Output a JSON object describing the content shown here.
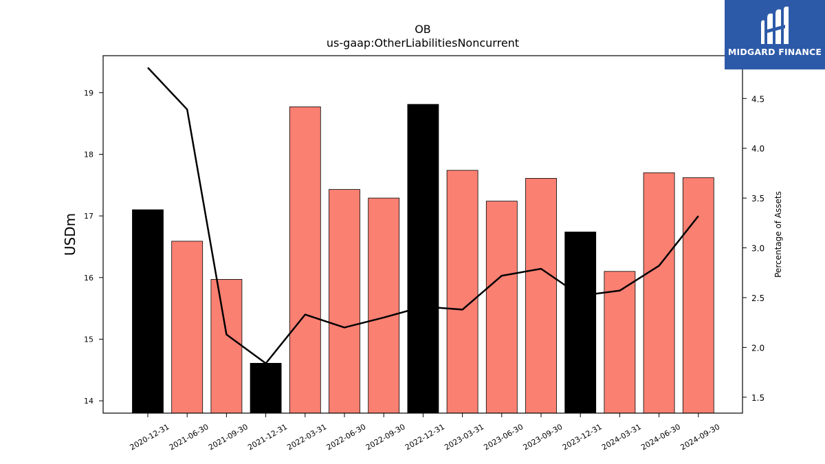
{
  "chart_data": {
    "type": "bar",
    "title": "OB",
    "subtitle": "us-gaap:OtherLiabilitiesNoncurrent",
    "ylabel": "USDm",
    "ylabel_right": "Percentage of Assets",
    "categories": [
      "2020-12-31",
      "2021-06-30",
      "2021-09-30",
      "2021-12-31",
      "2022-03-31",
      "2022-06-30",
      "2022-09-30",
      "2022-12-31",
      "2023-03-31",
      "2023-06-30",
      "2023-09-30",
      "2023-12-31",
      "2024-03-31",
      "2024-06-30",
      "2024-09-30"
    ],
    "values": [
      17.1,
      16.59,
      15.97,
      14.61,
      18.77,
      17.43,
      17.29,
      18.81,
      17.74,
      17.24,
      17.61,
      16.74,
      16.1,
      17.7,
      17.62
    ],
    "bar_colors": [
      "#000000",
      "#fa8072",
      "#fa8072",
      "#000000",
      "#fa8072",
      "#fa8072",
      "#fa8072",
      "#000000",
      "#fa8072",
      "#fa8072",
      "#fa8072",
      "#000000",
      "#fa8072",
      "#fa8072",
      "#fa8072"
    ],
    "line_series": {
      "values": [
        4.81,
        4.39,
        2.13,
        1.84,
        2.33,
        2.2,
        2.3,
        2.41,
        2.38,
        2.72,
        2.79,
        2.52,
        2.57,
        2.82,
        3.32
      ],
      "color": "#000000"
    },
    "ylim": [
      13.8,
      19.6
    ],
    "yticks": [
      14,
      15,
      16,
      17,
      18,
      19
    ],
    "ylim_right": [
      1.34,
      4.93
    ],
    "yticks_right": [
      1.5,
      2.0,
      2.5,
      3.0,
      3.5,
      4.0,
      4.5
    ],
    "grid": false
  },
  "logo": {
    "text": "MIDGARD FINANCE"
  }
}
